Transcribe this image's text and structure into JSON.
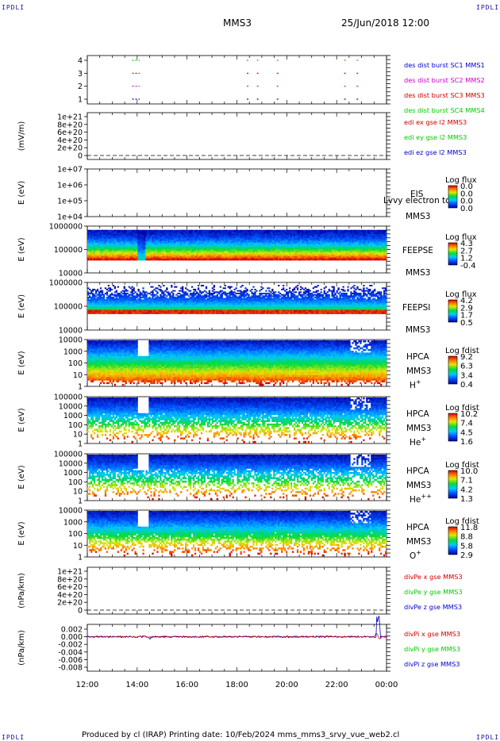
{
  "corner_label": "IPDLI",
  "header": {
    "spacecraft": "MMS3",
    "datetime": "25/Jun/2018 12:00"
  },
  "footer": {
    "text": "Produced by cl (IRAP)   Printing date: 10/Feb/2024   mms_mms3_srvy_vue_web2.cl"
  },
  "colors": {
    "blue": "#0000cc",
    "green": "#00cc00",
    "red": "#cc0000",
    "magenta": "#cc00cc"
  },
  "x_axis": {
    "ticks": [
      "12:00",
      "14:00",
      "16:00",
      "18:00",
      "20:00",
      "22:00",
      "00:00"
    ]
  },
  "chart_data": [
    {
      "type": "scatter",
      "id": "burst",
      "yticks": [
        "4",
        "3",
        "2",
        "1"
      ],
      "legend": [
        {
          "label": "des dist burst SC1 MMS1",
          "color": "#0000cc"
        },
        {
          "label": "des dist burst SC2 MMS2",
          "color": "#cc00cc"
        },
        {
          "label": "des dist burst SC3 MMS3",
          "color": "#cc0000"
        },
        {
          "label": "des dist burst SC4 MMS4",
          "color": "#00cc00"
        }
      ],
      "intervals_hours": [
        [
          13.8,
          14.1
        ],
        [
          18.4,
          18.5
        ],
        [
          18.8,
          18.9
        ],
        [
          19.6,
          19.7
        ],
        [
          22.3,
          22.4
        ],
        [
          22.8,
          22.9
        ]
      ]
    },
    {
      "type": "line",
      "id": "efield",
      "ylabel": "(mV/m)",
      "yticks": [
        "1e+21",
        "8e+20",
        "6e+20",
        "4e+20",
        "2e+20",
        "0"
      ],
      "legend": [
        {
          "label": "edi ex gse l2 MMS3",
          "color": "#cc0000"
        },
        {
          "label": "edi ey gse l2 MMS3",
          "color": "#00cc00"
        },
        {
          "label": "edi ez gse l2 MMS3",
          "color": "#0000cc"
        }
      ]
    },
    {
      "type": "heatmap",
      "id": "eis",
      "ylabel": "E (eV)",
      "yticks": [
        "1e+07",
        "1e+06",
        "1e+05",
        "1e+04"
      ],
      "instrument": "EIS",
      "sc": "MMS3",
      "overlay": "Lvvy electron to",
      "colorbar": {
        "title": "Log flux",
        "ticks": [
          "0.0",
          "0.0",
          "0.0",
          "0.0"
        ]
      }
    },
    {
      "type": "heatmap",
      "id": "feepse",
      "ylabel": "E (eV)",
      "yticks": [
        "1000000",
        "100000",
        "10000"
      ],
      "instrument": "FEEPSE",
      "sc": "MMS3",
      "colorbar": {
        "title": "Log flux",
        "ticks": [
          "4.3",
          "2.7",
          "1.2",
          "-0.4"
        ]
      }
    },
    {
      "type": "heatmap",
      "id": "feepsi",
      "ylabel": "E (eV)",
      "yticks": [
        "1000000",
        "100000",
        "10000"
      ],
      "instrument": "FEEPSI",
      "sc": "MMS3",
      "colorbar": {
        "title": "Log flux",
        "ticks": [
          "4.2",
          "2.9",
          "1.7",
          "0.5"
        ]
      }
    },
    {
      "type": "heatmap",
      "id": "hpca_h",
      "ylabel": "E (eV)",
      "yticks": [
        "10000",
        "1000",
        "100",
        "10",
        "1"
      ],
      "instrument": "HPCA",
      "sc": "MMS3",
      "species": "H",
      "charge": "+",
      "colorbar": {
        "title": "Log fdist",
        "ticks": [
          "9.2",
          "6.3",
          "3.4",
          "0.4"
        ]
      }
    },
    {
      "type": "heatmap",
      "id": "hpca_he",
      "ylabel": "E (eV)",
      "yticks": [
        "100000",
        "10000",
        "1000",
        "100",
        "10",
        "1"
      ],
      "instrument": "HPCA",
      "sc": "MMS3",
      "species": "He",
      "charge": "+",
      "colorbar": {
        "title": "Log fdist",
        "ticks": [
          "10.2",
          "7.4",
          "4.5",
          "1.6"
        ]
      }
    },
    {
      "type": "heatmap",
      "id": "hpca_he2",
      "ylabel": "E (eV)",
      "yticks": [
        "100000",
        "10000",
        "1000",
        "100",
        "10",
        "1"
      ],
      "instrument": "HPCA",
      "sc": "MMS3",
      "species": "He",
      "charge": "++",
      "colorbar": {
        "title": "Log fdist",
        "ticks": [
          "10.0",
          "7.1",
          "4.2",
          "1.3"
        ]
      }
    },
    {
      "type": "heatmap",
      "id": "hpca_o",
      "ylabel": "E (eV)",
      "yticks": [
        "10000",
        "1000",
        "100",
        "10",
        "1"
      ],
      "instrument": "HPCA",
      "sc": "MMS3",
      "species": "O",
      "charge": "+",
      "colorbar": {
        "title": "Log fdist",
        "ticks": [
          "11.8",
          "8.8",
          "5.8",
          "2.9"
        ]
      }
    },
    {
      "type": "line",
      "id": "divpe",
      "ylabel": "(nPa/km)",
      "yticks": [
        "1e+21",
        "8e+20",
        "6e+20",
        "4e+20",
        "2e+20",
        "0"
      ],
      "legend": [
        {
          "label": "divPe x gse MMS3",
          "color": "#cc0000"
        },
        {
          "label": "divPe y gse MMS3",
          "color": "#00cc00"
        },
        {
          "label": "divPe z gse MMS3",
          "color": "#0000cc"
        }
      ]
    },
    {
      "type": "line",
      "id": "divpi",
      "ylabel": "(nPa/km)",
      "yticks": [
        "0.002",
        "0.000",
        "-0.002",
        "-0.004",
        "-0.006",
        "-0.008"
      ],
      "ylim": [
        -0.009,
        0.003
      ],
      "legend": [
        {
          "label": "divPi x gse MMS3",
          "color": "#cc0000"
        },
        {
          "label": "divPi y gse MMS3",
          "color": "#00cc00"
        },
        {
          "label": "divPi z gse MMS3",
          "color": "#0000cc"
        }
      ]
    }
  ]
}
